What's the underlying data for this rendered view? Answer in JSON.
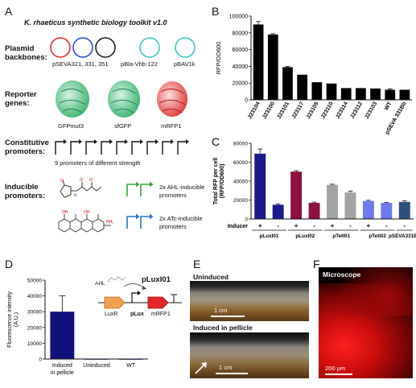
{
  "panel_a": {
    "letter": "A",
    "title": "K. rhaeticus synthetic biology toolkit v1.0",
    "rows": {
      "plasmid": {
        "label_line1": "Plasmid",
        "label_line2": "backbones:",
        "caption_left": "pSEVA321, 331, 351",
        "caption_mid": "pBla-Vhb-122",
        "caption_right": "pBAV1k"
      },
      "reporter": {
        "label_line1": "Reporter",
        "label_line2": "genes:",
        "proteins": [
          "GFPmut3",
          "sfGFP",
          "mRFP1"
        ]
      },
      "constitutive": {
        "label_line1": "Constitutive",
        "label_line2": "promoters:",
        "caption": "9 promoters of different strength"
      },
      "inducible": {
        "label_line1": "Inducible",
        "label_line2": "promoters:",
        "ahl_line1": "2x AHL-inducible",
        "ahl_line2": "promoters",
        "atc_line1": "2x ATc-inducible",
        "atc_line2": "promoters"
      }
    }
  },
  "panel_b": {
    "letter": "B",
    "chart_data": {
      "type": "bar",
      "ylabel": "RFP/OD600",
      "ylim": [
        0,
        100000
      ],
      "yticks": [
        "0",
        "20000",
        "40000",
        "60000",
        "80000",
        "100000"
      ],
      "categories": [
        "J23104",
        "J23100",
        "J23101",
        "J23117",
        "J23105",
        "J23110",
        "J23114",
        "J23112",
        "J23103",
        "WT",
        "pSEVA 331Bb"
      ],
      "values": [
        90000,
        78000,
        39000,
        30000,
        21000,
        19500,
        14000,
        14000,
        13500,
        12000,
        12000
      ],
      "errors": [
        3500,
        1000,
        800,
        0,
        0,
        0,
        0,
        0,
        0,
        1000,
        0
      ],
      "color": "#000000"
    }
  },
  "panel_c": {
    "letter": "C",
    "chart_data": {
      "type": "bar",
      "ylabel_line1": "Total RFP per cell",
      "ylabel_line2": "(RFP/OD600)",
      "ylim": [
        0,
        80000
      ],
      "yticks": [
        "0",
        "20000",
        "40000",
        "60000",
        "80000"
      ],
      "inducer_label": "Inducer",
      "inducer_marks": [
        "+",
        "-",
        "+",
        "-",
        "+",
        "-",
        "+",
        "-",
        "-"
      ],
      "groups": [
        "pLuxI01",
        "pLuxI02",
        "pTetI01",
        "pTetI02",
        "pSEVA331Bb"
      ],
      "values": [
        69000,
        15000,
        50000,
        17000,
        36000,
        28000,
        19000,
        17000,
        18000
      ],
      "errors": [
        5000,
        1000,
        1000,
        800,
        700,
        1500,
        700,
        500,
        1200
      ],
      "colors": [
        "#1a1a8c",
        "#1a1a8c",
        "#8e1040",
        "#8e1040",
        "#a3a3a3",
        "#a3a3a3",
        "#6f79ee",
        "#6f79ee",
        "#2c4f7c"
      ]
    }
  },
  "panel_d": {
    "letter": "D",
    "chart_data": {
      "type": "bar",
      "ylabel_line1": "Fluorescence intensity",
      "ylabel_line2": "(A.U.)",
      "ylim": [
        0,
        50000
      ],
      "yticks": [
        "0",
        "10000",
        "20000",
        "30000",
        "40000",
        "50000"
      ],
      "categories": [
        "Induced in pellicle",
        "Uninduced",
        "WT"
      ],
      "values": [
        30000,
        0,
        0
      ],
      "errors": [
        10000,
        0,
        0
      ],
      "color": "#10107a"
    },
    "diagram": {
      "title": "pLuxI01",
      "ahl": "AHL",
      "luxr": "LuxR",
      "plux": "pLux",
      "mrfp": "mRFP1"
    }
  },
  "panel_e": {
    "letter": "E",
    "top_label": "Uninduced",
    "bottom_label": "Induced in pellicle",
    "scale": "1 cm"
  },
  "panel_f": {
    "letter": "F",
    "label": "Microscope",
    "scale": "200 μm"
  }
}
